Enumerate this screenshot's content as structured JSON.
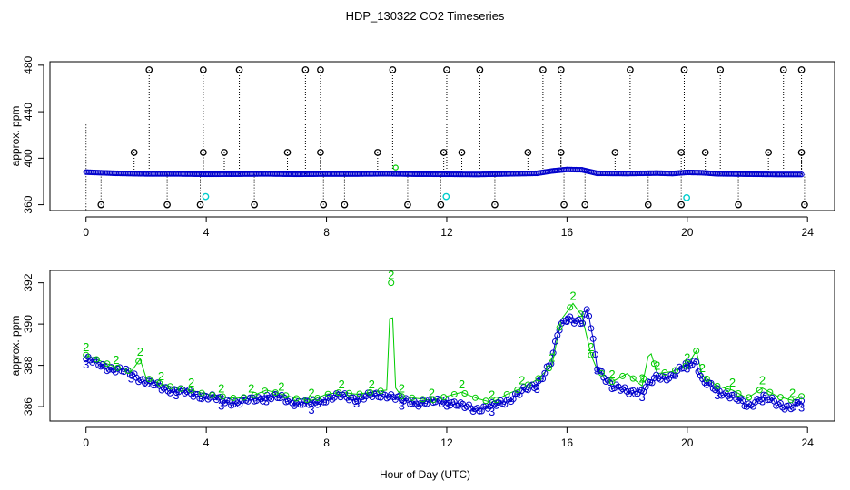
{
  "title": "HDP_130322  CO2 Timeseries",
  "xlabel": "Hour of Day (UTC)",
  "colors": {
    "black": "#000000",
    "blue": "#0000cc",
    "green": "#00cc00",
    "cyan": "#00cccc"
  },
  "chart_data": [
    {
      "type": "scatter",
      "panel": "top",
      "ylabel": "approx. ppm",
      "xlim": [
        -1.2,
        24.9
      ],
      "ylim": [
        355,
        483
      ],
      "xticks": [
        "0",
        "4",
        "8",
        "12",
        "16",
        "20",
        "24"
      ],
      "yticks": [
        "360",
        "400",
        "440",
        "480"
      ],
      "baseline": {
        "name": "",
        "x": [
          0.0,
          1.0,
          2.0,
          3.0,
          4.0,
          5.0,
          6.0,
          7.0,
          8.0,
          9.0,
          10.0,
          11.0,
          12.0,
          13.0,
          14.0,
          15.0,
          15.5,
          16.0,
          16.5,
          17.0,
          18.0,
          19.0,
          19.5,
          20.0,
          20.5,
          21.0,
          22.0,
          23.0,
          23.8
        ],
        "y": [
          388,
          387,
          386.5,
          386.5,
          386.2,
          386.3,
          386.5,
          386.2,
          386.4,
          386.4,
          386.6,
          386.3,
          386.2,
          386.0,
          386.5,
          387.0,
          389,
          390.3,
          390,
          387,
          386.8,
          387.2,
          386.8,
          387.8,
          387.5,
          386.6,
          386.3,
          386.0,
          386.0
        ]
      },
      "outliers_high": [
        2.1,
        3.9,
        5.1,
        7.3,
        7.8,
        10.2,
        12.0,
        13.1,
        15.2,
        15.8,
        18.1,
        19.9,
        21.1,
        23.2,
        23.8
      ],
      "outliers_mid": [
        1.6,
        3.9,
        4.6,
        6.7,
        7.8,
        9.7,
        11.9,
        12.5,
        14.7,
        15.8,
        17.6,
        19.8,
        20.6,
        22.7,
        23.8
      ],
      "outliers_low": [
        0.5,
        2.7,
        3.8,
        5.6,
        7.9,
        8.6,
        10.7,
        11.8,
        13.6,
        15.9,
        16.6,
        18.7,
        19.8,
        21.7,
        23.9
      ],
      "cyan_points": [
        {
          "x": 3.98,
          "y": 367
        },
        {
          "x": 11.98,
          "y": 367
        },
        {
          "x": 19.98,
          "y": 366
        }
      ],
      "high_value": 476,
      "mid_value": 405,
      "low_value": 360
    },
    {
      "type": "line",
      "panel": "bottom",
      "ylabel": "approx. ppm",
      "xlim": [
        -1.2,
        24.9
      ],
      "ylim": [
        385.3,
        392.6
      ],
      "xticks": [
        "0",
        "4",
        "8",
        "12",
        "16",
        "20",
        "24"
      ],
      "yticks": [
        "386",
        "388",
        "390",
        "392"
      ],
      "series": [
        {
          "name": "",
          "marker": "3",
          "x": [
            0.0,
            0.5,
            1.0,
            1.5,
            2.0,
            2.5,
            3.0,
            3.5,
            4.0,
            4.5,
            5.0,
            5.5,
            6.0,
            6.5,
            7.0,
            7.5,
            8.0,
            8.5,
            9.0,
            9.5,
            10.0,
            10.5,
            11.0,
            11.5,
            12.0,
            12.5,
            13.0,
            13.5,
            14.0,
            14.5,
            15.0,
            15.5,
            15.7,
            16.0,
            16.5,
            16.7,
            17.0,
            17.5,
            18.0,
            18.5,
            19.0,
            19.5,
            20.0,
            20.3,
            20.5,
            21.0,
            21.5,
            22.0,
            22.5,
            23.0,
            23.5,
            23.8
          ],
          "y": [
            388.3,
            388.0,
            387.8,
            387.6,
            387.2,
            386.9,
            386.8,
            386.6,
            386.5,
            386.3,
            386.2,
            386.3,
            386.5,
            386.4,
            386.2,
            386.1,
            386.4,
            386.5,
            386.4,
            386.5,
            386.6,
            386.3,
            386.2,
            386.2,
            386.3,
            386.0,
            385.9,
            386.0,
            386.3,
            386.7,
            387.1,
            388.2,
            389.6,
            390.4,
            390.0,
            390.7,
            388.0,
            386.9,
            386.8,
            386.7,
            387.5,
            387.4,
            388.1,
            388.2,
            387.2,
            386.8,
            386.5,
            386.0,
            386.5,
            386.1,
            386.0,
            386.2
          ]
        },
        {
          "name": "",
          "marker": "2",
          "x": [
            0.0,
            0.5,
            1.0,
            1.5,
            1.8,
            2.0,
            2.5,
            3.0,
            3.5,
            4.0,
            4.5,
            5.0,
            5.5,
            6.0,
            6.5,
            7.0,
            7.5,
            8.0,
            8.5,
            9.0,
            9.5,
            10.0,
            10.15,
            10.3,
            10.5,
            11.0,
            11.5,
            12.0,
            12.5,
            13.0,
            13.5,
            14.0,
            14.5,
            15.0,
            15.5,
            15.8,
            16.2,
            16.5,
            16.8,
            17.0,
            17.5,
            18.0,
            18.5,
            18.75,
            19.0,
            19.5,
            20.0,
            20.3,
            20.5,
            21.0,
            21.5,
            22.0,
            22.5,
            23.0,
            23.5,
            23.8
          ],
          "y": [
            388.5,
            388.2,
            387.9,
            387.7,
            388.3,
            387.4,
            387.1,
            386.9,
            386.8,
            386.6,
            386.5,
            386.4,
            386.5,
            386.8,
            386.6,
            386.4,
            386.3,
            386.6,
            386.7,
            386.6,
            386.7,
            386.8,
            392.0,
            386.9,
            386.5,
            386.4,
            386.3,
            386.5,
            386.7,
            386.4,
            386.2,
            386.6,
            386.9,
            387.3,
            388.0,
            390.2,
            391.0,
            390.4,
            388.5,
            387.8,
            387.2,
            387.6,
            387.0,
            388.8,
            387.6,
            387.7,
            388.0,
            388.7,
            387.5,
            387.0,
            386.8,
            386.4,
            386.9,
            386.5,
            386.3,
            386.5
          ]
        }
      ]
    }
  ]
}
